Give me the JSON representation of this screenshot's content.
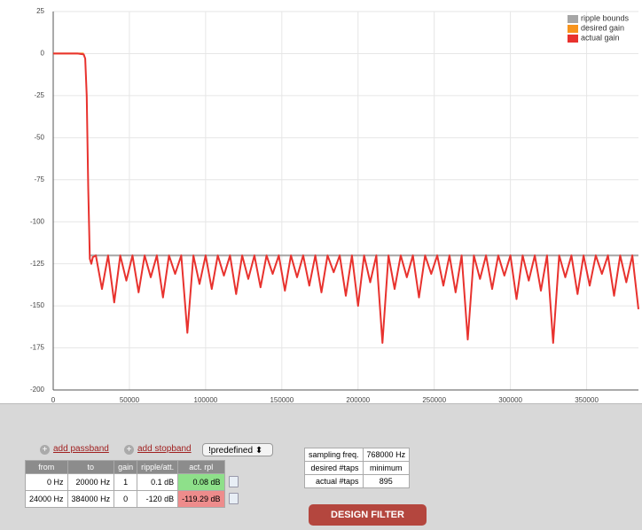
{
  "chart_data": {
    "type": "line",
    "xlim": [
      0,
      384000
    ],
    "xticks": [
      0,
      50000,
      100000,
      150000,
      200000,
      250000,
      300000,
      350000
    ],
    "ylim": [
      -200,
      25
    ],
    "yticks": [
      25,
      0,
      -25,
      -50,
      -75,
      -100,
      -125,
      -150,
      -175,
      -200
    ],
    "grid": true,
    "legend": "top-right",
    "series": [
      {
        "name": "ripple bounds",
        "color": "#a6a6a6",
        "x": [
          24000,
          384000
        ],
        "values": [
          -120,
          -120
        ]
      },
      {
        "name": "desired gain",
        "color": "#f7941d",
        "x": [
          0,
          20000
        ],
        "values": [
          0,
          0
        ]
      },
      {
        "name": "actual gain",
        "color": "#e8322e",
        "x": [
          0,
          4000,
          8000,
          12000,
          16000,
          20000,
          21000,
          22000,
          23000,
          24000,
          25000,
          26000,
          28000,
          32000,
          36000,
          40000,
          44000,
          48000,
          52000,
          56000,
          60000,
          64000,
          68000,
          72000,
          76000,
          80000,
          84000,
          88000,
          92000,
          96000,
          100000,
          104000,
          108000,
          112000,
          116000,
          120000,
          124000,
          128000,
          132000,
          136000,
          140000,
          144000,
          148000,
          152000,
          156000,
          160000,
          164000,
          168000,
          172000,
          176000,
          180000,
          184000,
          188000,
          192000,
          196000,
          200000,
          204000,
          208000,
          212000,
          216000,
          220000,
          224000,
          228000,
          232000,
          236000,
          240000,
          244000,
          248000,
          252000,
          256000,
          260000,
          264000,
          268000,
          272000,
          276000,
          280000,
          284000,
          288000,
          292000,
          296000,
          300000,
          304000,
          308000,
          312000,
          316000,
          320000,
          324000,
          328000,
          332000,
          336000,
          340000,
          344000,
          348000,
          352000,
          356000,
          360000,
          364000,
          368000,
          372000,
          376000,
          380000,
          384000
        ],
        "values": [
          0,
          0,
          0,
          0,
          0,
          -0.5,
          -3,
          -25,
          -80,
          -122,
          -125,
          -121,
          -120,
          -140,
          -120,
          -148,
          -120,
          -135,
          -120,
          -142,
          -120,
          -133,
          -120,
          -145,
          -120,
          -131,
          -120,
          -166,
          -120,
          -137,
          -120,
          -140,
          -120,
          -132,
          -120,
          -143,
          -120,
          -134,
          -120,
          -139,
          -120,
          -131,
          -120,
          -141,
          -120,
          -133,
          -120,
          -138,
          -120,
          -142,
          -120,
          -130,
          -120,
          -144,
          -120,
          -150,
          -120,
          -136,
          -120,
          -172,
          -120,
          -140,
          -120,
          -133,
          -120,
          -145,
          -120,
          -131,
          -120,
          -138,
          -120,
          -142,
          -120,
          -170,
          -120,
          -134,
          -120,
          -140,
          -120,
          -132,
          -120,
          -146,
          -120,
          -135,
          -120,
          -141,
          -120,
          -172,
          -120,
          -133,
          -120,
          -143,
          -120,
          -138,
          -120,
          -131,
          -120,
          -144,
          -120,
          -136,
          -120,
          -152
        ]
      }
    ]
  },
  "controls": {
    "add_passband": "add passband",
    "add_stopband": "add stopband",
    "preset": "!predefined"
  },
  "bands": {
    "columns": [
      "from",
      "to",
      "gain",
      "ripple/att.",
      "act. rpl"
    ],
    "rows": [
      [
        "0 Hz",
        "20000 Hz",
        "1",
        "0.1 dB",
        "0.08 dB"
      ],
      [
        "24000 Hz",
        "384000 Hz",
        "0",
        "-120 dB",
        "-119.29 dB"
      ]
    ]
  },
  "settings": {
    "rows": [
      [
        "sampling freq.",
        "768000 Hz"
      ],
      [
        "desired #taps",
        "minimum"
      ],
      [
        "actual #taps",
        "895"
      ]
    ]
  },
  "button": "DESIGN FILTER"
}
